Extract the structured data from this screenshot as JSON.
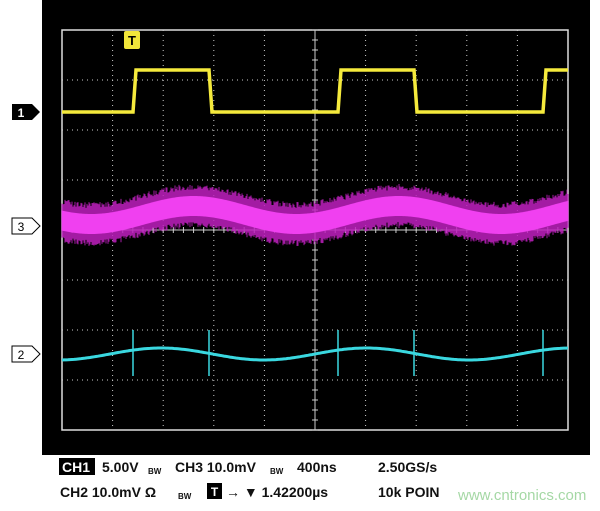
{
  "trigger_marker": "T",
  "channel_markers": [
    "1",
    "3",
    "2"
  ],
  "readout": {
    "ch1_label": "CH1",
    "ch1_scale": "5.00V",
    "ch1_bw": "BW",
    "ch3": "CH3 10.0mV",
    "ch3_bw": "BW",
    "timebase": "400ns",
    "sample_rate": "2.50GS/s",
    "ch2": "CH2 10.0mV Ω",
    "ch2_bw": "BW",
    "trigger_icon": "T",
    "trigger_position": "→ ▼ 1.42200µs",
    "record_length": "10k POIN"
  },
  "watermark": "www.cntronics.com"
}
